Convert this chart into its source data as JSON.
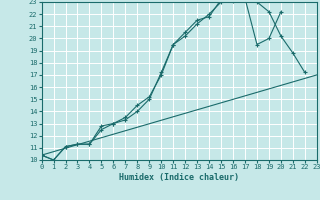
{
  "xlabel": "Humidex (Indice chaleur)",
  "bg_color": "#c6e8e8",
  "grid_color": "#ffffff",
  "line_color": "#1a6b6b",
  "xlim": [
    0,
    23
  ],
  "ylim": [
    10,
    23
  ],
  "xticks": [
    0,
    1,
    2,
    3,
    4,
    5,
    6,
    7,
    8,
    9,
    10,
    11,
    12,
    13,
    14,
    15,
    16,
    17,
    18,
    19,
    20,
    21,
    22,
    23
  ],
  "yticks": [
    10,
    11,
    12,
    13,
    14,
    15,
    16,
    17,
    18,
    19,
    20,
    21,
    22,
    23
  ],
  "line1_x": [
    0,
    1,
    2,
    3,
    4,
    5,
    6,
    7,
    8,
    9,
    10,
    11,
    12,
    13,
    14,
    15,
    16,
    17,
    18,
    19,
    20,
    21,
    22
  ],
  "line1_y": [
    10.4,
    10.0,
    11.1,
    11.3,
    11.3,
    12.8,
    13.0,
    13.3,
    14.0,
    15.0,
    17.2,
    19.5,
    20.5,
    21.5,
    21.8,
    23.2,
    23.1,
    23.3,
    23.0,
    22.2,
    20.2,
    18.8,
    17.2
  ],
  "line2_x": [
    0,
    1,
    2,
    3,
    4,
    5,
    6,
    7,
    8,
    9,
    10,
    11,
    12,
    13,
    14,
    15,
    16,
    17,
    18,
    19,
    20
  ],
  "line2_y": [
    10.4,
    10.0,
    11.1,
    11.3,
    11.3,
    12.5,
    13.0,
    13.5,
    14.5,
    15.2,
    17.0,
    19.5,
    20.2,
    21.2,
    22.0,
    23.0,
    23.2,
    23.3,
    19.5,
    20.0,
    22.2
  ],
  "line3_x": [
    0,
    23
  ],
  "line3_y": [
    10.4,
    17.0
  ]
}
